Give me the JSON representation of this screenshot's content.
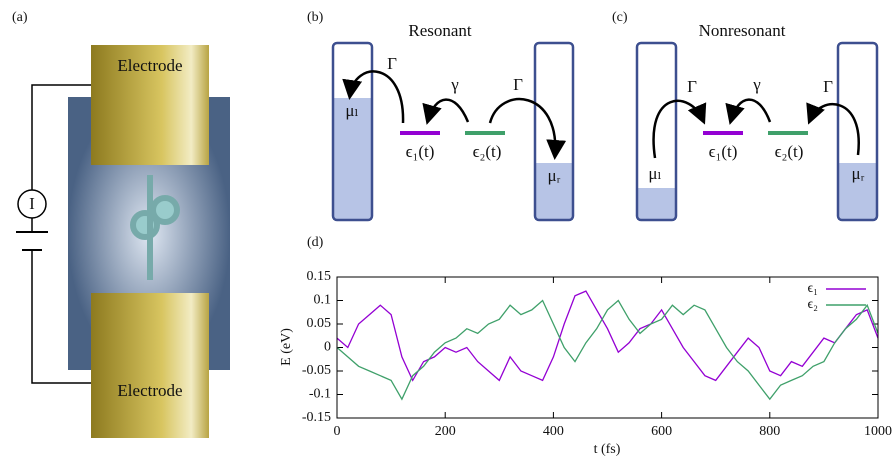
{
  "panels": {
    "a": {
      "label": "(a)",
      "electrodes": [
        "Electrode",
        "Electrode"
      ],
      "meter": "I"
    },
    "b": {
      "label": "(b)",
      "title": "Resonant",
      "left_coupling": "Γ",
      "inter_coupling": "γ",
      "right_coupling": "Γ",
      "mu_left": "μₗ",
      "mu_right": "μᵣ",
      "level1": "ϵ₁(t)",
      "level2": "ϵ₂(t)"
    },
    "c": {
      "label": "(c)",
      "title": "Nonresonant",
      "left_coupling": "Γ",
      "inter_coupling": "γ",
      "right_coupling": "Γ",
      "mu_left": "μₗ",
      "mu_right": "μᵣ",
      "level1": "ϵ₁(t)",
      "level2": "ϵ₂(t)"
    },
    "d": {
      "label": "(d)"
    }
  },
  "chart_data": {
    "type": "line",
    "xlabel": "t (fs)",
    "ylabel": "E (eV)",
    "x": [
      0,
      20,
      40,
      60,
      80,
      100,
      120,
      140,
      160,
      180,
      200,
      220,
      240,
      260,
      280,
      300,
      320,
      340,
      360,
      380,
      400,
      420,
      440,
      460,
      480,
      500,
      520,
      540,
      560,
      580,
      600,
      620,
      640,
      660,
      680,
      700,
      720,
      740,
      760,
      780,
      800,
      820,
      840,
      860,
      880,
      900,
      920,
      940,
      960,
      980,
      1000
    ],
    "series": [
      {
        "name": "ϵ₁",
        "color": "#9400d3",
        "values": [
          0.02,
          0.0,
          0.05,
          0.07,
          0.09,
          0.07,
          -0.02,
          -0.07,
          -0.03,
          -0.02,
          0.0,
          -0.01,
          0.0,
          -0.03,
          -0.05,
          -0.07,
          -0.02,
          -0.05,
          -0.06,
          -0.07,
          -0.02,
          0.05,
          0.11,
          0.12,
          0.08,
          0.04,
          -0.01,
          0.01,
          0.04,
          0.05,
          0.08,
          0.04,
          0.0,
          -0.03,
          -0.06,
          -0.07,
          -0.04,
          -0.01,
          0.02,
          0.0,
          -0.05,
          -0.06,
          -0.03,
          -0.04,
          -0.01,
          0.02,
          0.01,
          0.04,
          0.07,
          0.08,
          0.02
        ]
      },
      {
        "name": "ϵ₂",
        "color": "#3fa06a",
        "values": [
          0.0,
          -0.02,
          -0.04,
          -0.05,
          -0.06,
          -0.07,
          -0.11,
          -0.06,
          -0.04,
          -0.01,
          0.01,
          0.02,
          0.04,
          0.03,
          0.05,
          0.06,
          0.09,
          0.07,
          0.08,
          0.1,
          0.05,
          0.0,
          -0.03,
          0.01,
          0.04,
          0.08,
          0.1,
          0.06,
          0.03,
          0.05,
          0.06,
          0.09,
          0.07,
          0.09,
          0.08,
          0.04,
          0.0,
          -0.03,
          -0.05,
          -0.08,
          -0.11,
          -0.08,
          -0.07,
          -0.06,
          -0.04,
          -0.03,
          0.01,
          0.04,
          0.06,
          0.09,
          0.03
        ]
      }
    ],
    "xlim": [
      0,
      1000
    ],
    "xticks": [
      0,
      200,
      400,
      600,
      800,
      1000
    ],
    "ylim": [
      -0.15,
      0.15
    ],
    "yticks": [
      -0.15,
      -0.1,
      -0.05,
      0,
      0.05,
      0.1,
      0.15
    ],
    "legend": "upper right"
  }
}
